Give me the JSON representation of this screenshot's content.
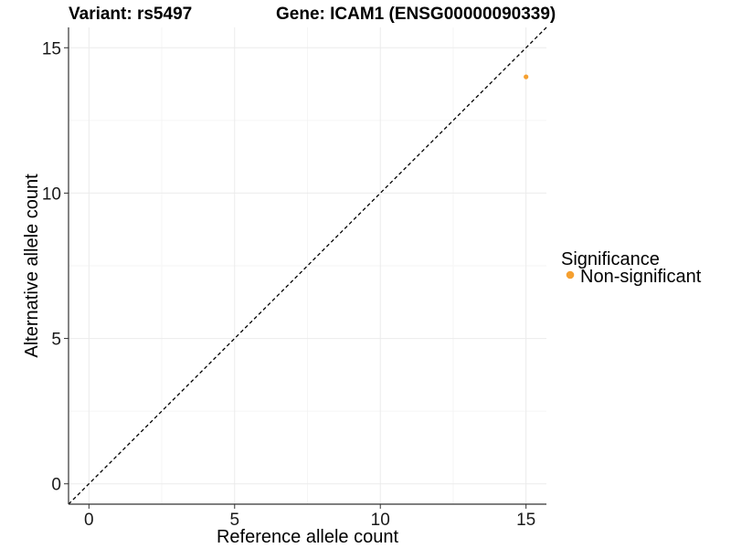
{
  "chart_data": {
    "type": "scatter",
    "title_left": "Variant: rs5497",
    "title_right": "Gene: ICAM1 (ENSG00000090339)",
    "xlabel": "Reference allele count",
    "ylabel": "Alternative allele count",
    "xlim": [
      -0.7,
      15.7
    ],
    "ylim": [
      -0.7,
      15.7
    ],
    "x_ticks": [
      0,
      5,
      10,
      15
    ],
    "y_ticks": [
      0,
      5,
      10,
      15
    ],
    "grid": true,
    "reference_line": {
      "type": "diagonal",
      "slope": 1,
      "intercept": 0,
      "style": "dashed"
    },
    "legend": {
      "title": "Significance",
      "position": "right",
      "entries": [
        {
          "label": "Non-significant",
          "color": "#f5a030"
        }
      ]
    },
    "series": [
      {
        "name": "Non-significant",
        "color": "#f5a030",
        "points": [
          {
            "x": 15,
            "y": 14
          }
        ]
      }
    ]
  }
}
